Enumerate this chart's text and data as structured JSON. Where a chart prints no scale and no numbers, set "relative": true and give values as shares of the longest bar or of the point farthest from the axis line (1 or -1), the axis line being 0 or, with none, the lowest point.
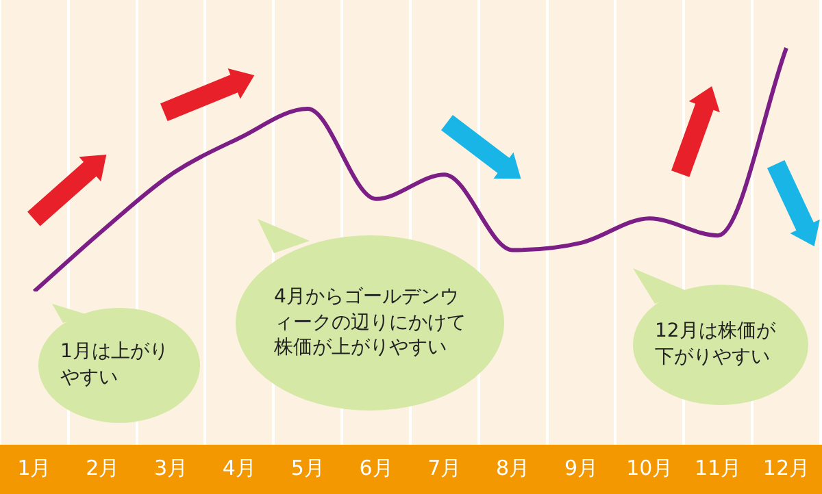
{
  "chart_data": {
    "type": "line",
    "categories": [
      "1月",
      "2月",
      "3月",
      "4月",
      "5月",
      "6月",
      "7月",
      "8月",
      "9月",
      "10月",
      "11月",
      "12月"
    ],
    "series": [
      {
        "color": "#7b1e86",
        "values": [
          0,
          0.25,
          0.48,
          0.63,
          0.75,
          0.38,
          0.48,
          0.17,
          0.2,
          0.3,
          0.23,
          1
        ]
      }
    ],
    "relative": true,
    "grid": "x",
    "legend": false,
    "marker": "none",
    "annotations": [
      "1月は上がりやすい",
      "4月からゴールデンウィークの辺りにかけて株価が上がりやすい",
      "12月は株価が下がりやすい"
    ]
  }
}
